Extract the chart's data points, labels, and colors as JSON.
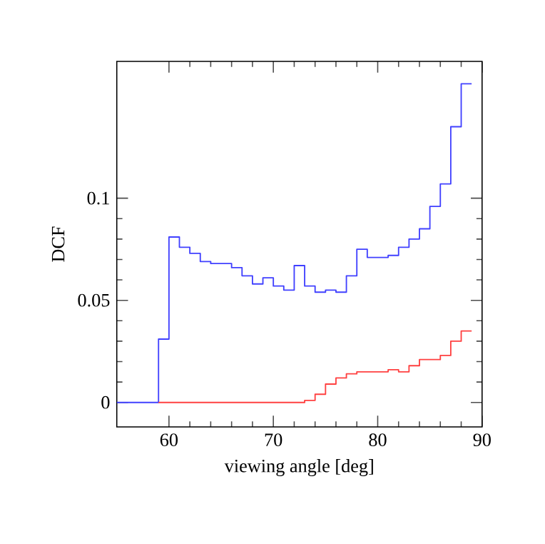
{
  "chart_data": {
    "type": "step",
    "xlabel": "viewing angle [deg]",
    "ylabel": "DCF",
    "xlim": [
      55,
      90
    ],
    "ylim": [
      -0.012,
      0.167
    ],
    "xticks": [
      60,
      70,
      80,
      90
    ],
    "yticks": [
      0,
      0.05,
      0.1
    ],
    "series": [
      {
        "color": "#4040ff",
        "x": [
          55,
          56,
          57,
          58,
          59,
          60,
          61,
          62,
          63,
          64,
          65,
          66,
          67,
          68,
          69,
          70,
          71,
          72,
          73,
          74,
          75,
          76,
          77,
          78,
          79,
          80,
          81,
          82,
          83,
          84,
          85,
          86,
          87,
          88,
          89
        ],
        "values": [
          0,
          0,
          0,
          0,
          0,
          0.031,
          0.081,
          0.076,
          0.073,
          0.069,
          0.068,
          0.068,
          0.066,
          0.062,
          0.058,
          0.061,
          0.057,
          0.055,
          0.067,
          0.057,
          0.054,
          0.055,
          0.054,
          0.062,
          0.075,
          0.071,
          0.071,
          0.072,
          0.076,
          0.08,
          0.085,
          0.096,
          0.107,
          0.135,
          0.156
        ]
      },
      {
        "color": "#ff4040",
        "x": [
          59,
          60,
          61,
          62,
          63,
          64,
          65,
          66,
          67,
          68,
          69,
          70,
          71,
          72,
          73,
          74,
          75,
          76,
          77,
          78,
          79,
          80,
          81,
          82,
          83,
          84,
          85,
          86,
          87,
          88,
          89
        ],
        "values": [
          0,
          0,
          0,
          0,
          0,
          0,
          0,
          0,
          0,
          0,
          0,
          0,
          0,
          0,
          0,
          0.001,
          0.004,
          0.009,
          0.012,
          0.014,
          0.015,
          0.015,
          0.015,
          0.016,
          0.015,
          0.018,
          0.021,
          0.021,
          0.023,
          0.03,
          0.035
        ]
      }
    ]
  }
}
